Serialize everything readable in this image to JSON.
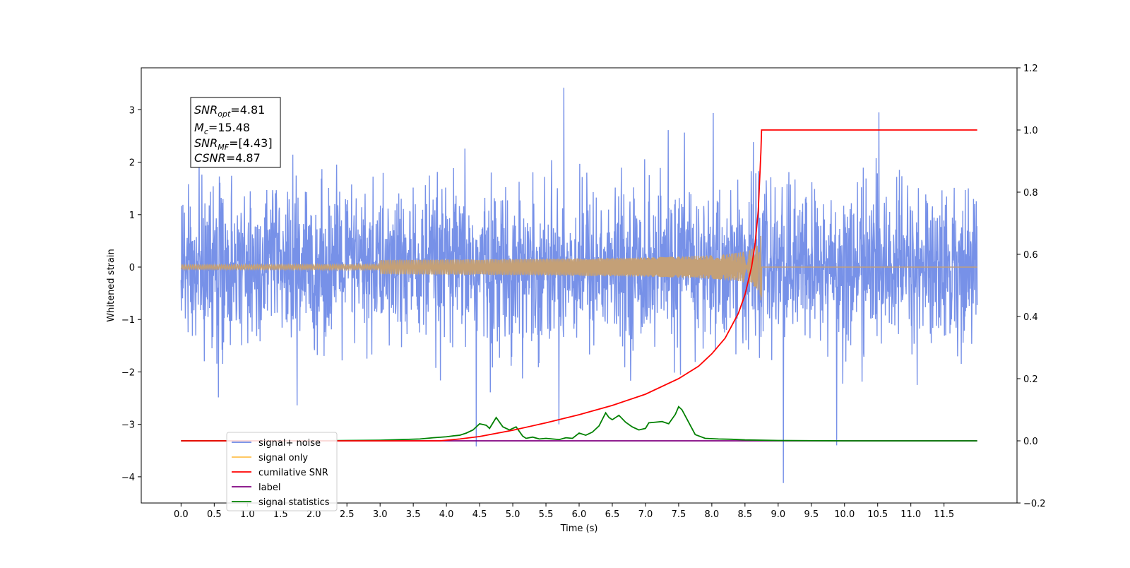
{
  "chart_data": {
    "type": "line",
    "xlabel": "Time (s)",
    "ylabel": "Whitened strain",
    "xlim": [
      -0.6,
      12.6
    ],
    "ylim": [
      -4.5,
      3.8
    ],
    "y2lim": [
      -0.2,
      1.2
    ],
    "x_ticks": [
      "0.0",
      "0.5",
      "1.0",
      "1.5",
      "2.0",
      "2.5",
      "3.0",
      "3.5",
      "4.0",
      "4.5",
      "5.0",
      "5.5",
      "6.0",
      "6.5",
      "7.0",
      "7.5",
      "8.0",
      "8.5",
      "9.0",
      "9.5",
      "10.0",
      "10.5",
      "11.0",
      "11.5"
    ],
    "y_ticks": [
      "3",
      "2",
      "1",
      "0",
      "−1",
      "−2",
      "−3",
      "−4"
    ],
    "y2_ticks": [
      "1.2",
      "1.0",
      "0.8",
      "0.6",
      "0.4",
      "0.2",
      "0.0",
      "−0.2"
    ],
    "legend_position": "lower-left",
    "legend": [
      {
        "label": "signal+ noise",
        "color": "#6b88e6"
      },
      {
        "label": "signal only",
        "color": "#ffc04d"
      },
      {
        "label": "cumilative SNR",
        "color": "#ff0000"
      },
      {
        "label": "label",
        "color": "#800080"
      },
      {
        "label": "signal statistics",
        "color": "#008000"
      }
    ],
    "annotation": {
      "snr_opt": {
        "name": "SNR",
        "sub": "opt",
        "value": "=4.81"
      },
      "mc": {
        "name": "M",
        "sub": "c",
        "value": "=15.48"
      },
      "snr_mf": {
        "name": "SNR",
        "sub": "MF",
        "value": "=[4.43]"
      },
      "csnr": {
        "name": "CSNR",
        "sub": "",
        "value": "=4.87"
      }
    },
    "series": [
      {
        "name": "signal+ noise",
        "axis": "left",
        "color": "#6b88e6",
        "description_range": [
          0.0,
          12.0
        ],
        "approx_envelope": [
          -2.0,
          2.2
        ],
        "notable_peaks": [
          [
            5.77,
            3.42
          ],
          [
            9.08,
            -4.12
          ],
          [
            4.45,
            -3.42
          ],
          [
            9.88,
            -3.4
          ]
        ]
      },
      {
        "name": "signal only",
        "axis": "left",
        "color": "#c4a077",
        "chirp_end": 8.75,
        "peak_amplitude": 0.85
      },
      {
        "name": "cumilative SNR",
        "axis": "right",
        "color": "#ff0000",
        "x": [
          0.0,
          3.9,
          4.2,
          4.5,
          5.0,
          5.5,
          6.0,
          6.5,
          7.0,
          7.5,
          7.8,
          8.0,
          8.2,
          8.4,
          8.5,
          8.6,
          8.65,
          8.7,
          8.74,
          8.75,
          12.0
        ],
        "y": [
          0.0,
          0.0,
          0.006,
          0.014,
          0.034,
          0.058,
          0.084,
          0.114,
          0.15,
          0.2,
          0.24,
          0.28,
          0.33,
          0.41,
          0.47,
          0.56,
          0.63,
          0.74,
          0.93,
          1.0,
          1.0
        ]
      },
      {
        "name": "label",
        "axis": "right",
        "color": "#800080",
        "x": [
          0.0,
          12.0
        ],
        "y": [
          0.0,
          0.0
        ]
      },
      {
        "name": "signal statistics",
        "axis": "right",
        "color": "#008000",
        "x": [
          0.0,
          1.0,
          2.0,
          2.5,
          3.0,
          3.3,
          3.6,
          3.8,
          4.0,
          4.1,
          4.2,
          4.3,
          4.4,
          4.5,
          4.6,
          4.65,
          4.75,
          4.85,
          4.95,
          5.05,
          5.1,
          5.15,
          5.2,
          5.3,
          5.4,
          5.5,
          5.6,
          5.7,
          5.8,
          5.9,
          6.0,
          6.1,
          6.2,
          6.3,
          6.4,
          6.45,
          6.5,
          6.6,
          6.7,
          6.8,
          6.9,
          7.0,
          7.05,
          7.15,
          7.25,
          7.35,
          7.45,
          7.5,
          7.55,
          7.65,
          7.75,
          7.9,
          8.1,
          8.3,
          8.5,
          9.0,
          10.0,
          12.0
        ],
        "y": [
          0.0,
          0.0,
          0.0,
          0.001,
          0.002,
          0.004,
          0.006,
          0.01,
          0.013,
          0.016,
          0.018,
          0.025,
          0.035,
          0.055,
          0.05,
          0.04,
          0.075,
          0.045,
          0.035,
          0.045,
          0.03,
          0.015,
          0.008,
          0.012,
          0.006,
          0.008,
          0.006,
          0.004,
          0.01,
          0.008,
          0.025,
          0.018,
          0.028,
          0.048,
          0.09,
          0.075,
          0.068,
          0.082,
          0.06,
          0.045,
          0.035,
          0.04,
          0.058,
          0.06,
          0.062,
          0.055,
          0.085,
          0.11,
          0.1,
          0.06,
          0.02,
          0.008,
          0.006,
          0.005,
          0.003,
          0.001,
          0.0,
          0.0
        ]
      }
    ]
  }
}
